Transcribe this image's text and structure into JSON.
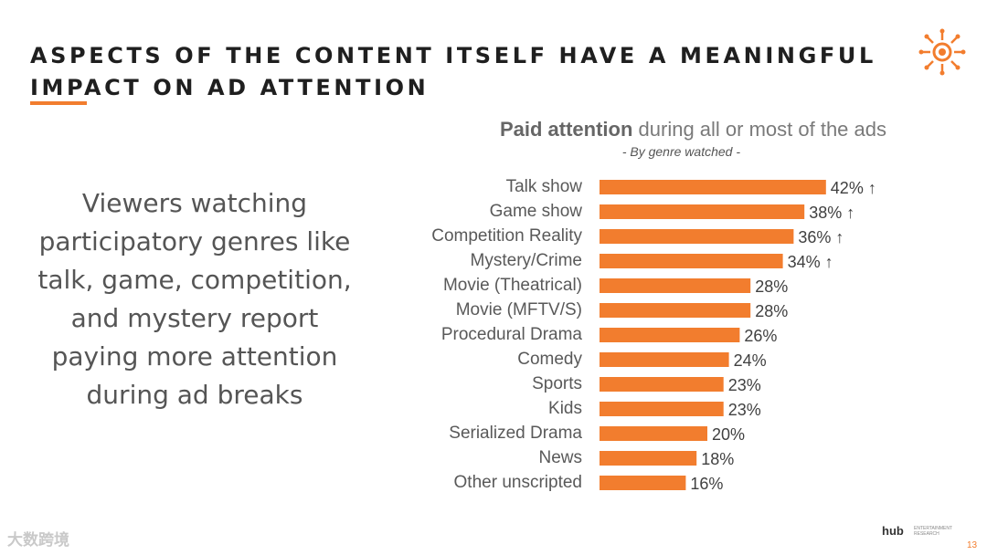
{
  "slide": {
    "title": "ASPECTS OF THE CONTENT ITSELF HAVE A MEANINGFUL IMPACT ON AD ATTENTION",
    "summary": "Viewers watching participatory genres like talk, game, competition, and mystery report paying more attention during ad breaks",
    "page_number": "13",
    "brand": "hub",
    "brand_sub": "ENTERTAINMENT RESEARCH",
    "watermark": "大数跨境"
  },
  "colors": {
    "accent": "#f27d2e",
    "bar": "#f27d2e"
  },
  "chart_data": {
    "type": "bar",
    "orientation": "horizontal",
    "title_bold": "Paid attention",
    "title_rest": " during all or most of the ads",
    "subtitle": "- By genre watched -",
    "categories": [
      "Talk show",
      "Game show",
      "Competition Reality",
      "Mystery/Crime",
      "Movie (Theatrical)",
      "Movie (MFTV/S)",
      "Procedural Drama",
      "Comedy",
      "Sports",
      "Kids",
      "Serialized Drama",
      "News",
      "Other unscripted"
    ],
    "values": [
      42,
      38,
      36,
      34,
      28,
      28,
      26,
      24,
      23,
      23,
      20,
      18,
      16
    ],
    "labels": [
      "42% ↑",
      "38% ↑",
      "36% ↑",
      "34% ↑",
      "28%",
      "28%",
      "26%",
      "24%",
      "23%",
      "23%",
      "20%",
      "18%",
      "16%"
    ],
    "unit": "%"
  }
}
